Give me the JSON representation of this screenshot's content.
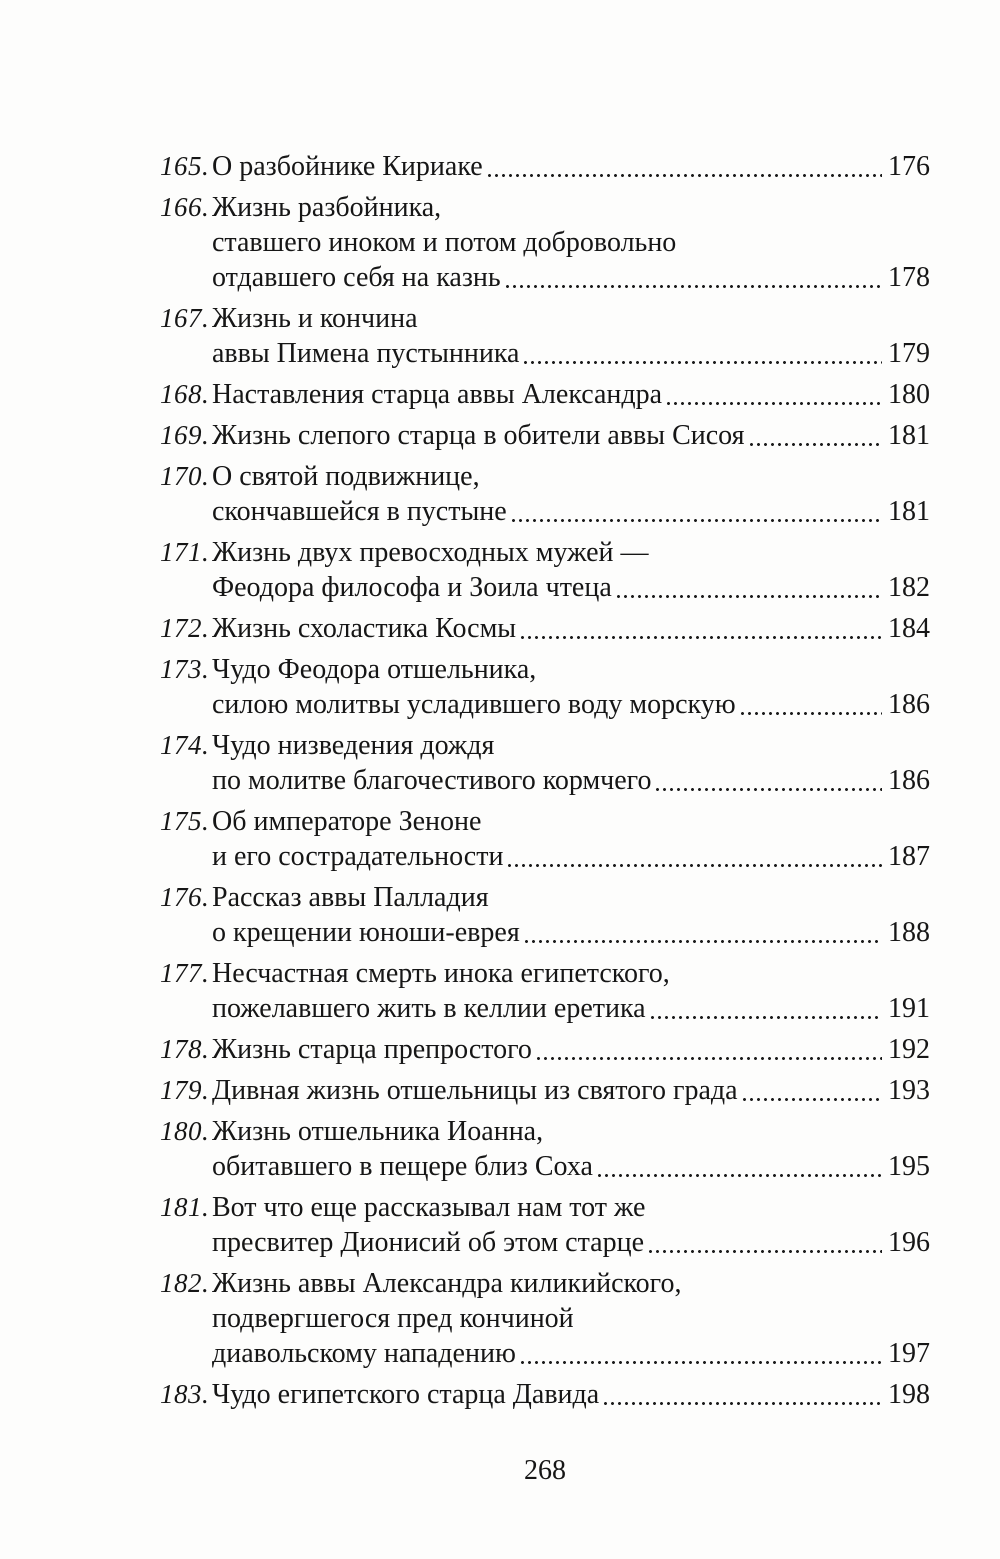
{
  "page": {
    "background_color": "#fdfdfc",
    "text_color": "#161616",
    "footer_page_number": "268"
  },
  "toc": {
    "entries": [
      {
        "number": "165.",
        "lines": [
          "О разбойнике Кириаке"
        ],
        "page": "176"
      },
      {
        "number": "166.",
        "lines": [
          "Жизнь разбойника,",
          "ставшего иноком и потом добровольно",
          "отдавшего себя на казнь"
        ],
        "page": "178"
      },
      {
        "number": "167.",
        "lines": [
          "Жизнь и кончина",
          "аввы Пимена пустынника"
        ],
        "page": "179"
      },
      {
        "number": "168.",
        "lines": [
          "Наставления старца аввы Александра"
        ],
        "page": "180"
      },
      {
        "number": "169.",
        "lines": [
          "Жизнь слепого старца в обители аввы Сисоя"
        ],
        "page": "181"
      },
      {
        "number": "170.",
        "lines": [
          "О святой подвижнице,",
          "скончавшейся в пустыне"
        ],
        "page": "181"
      },
      {
        "number": "171.",
        "lines": [
          "Жизнь двух превосходных мужей —",
          "Феодора философа и Зоила чтеца"
        ],
        "page": "182"
      },
      {
        "number": "172.",
        "lines": [
          "Жизнь схоластика Космы"
        ],
        "page": "184"
      },
      {
        "number": "173.",
        "lines": [
          "Чудо Феодора отшельника,",
          "силою молитвы усладившего воду морскую"
        ],
        "page": "186"
      },
      {
        "number": "174.",
        "lines": [
          "Чудо низведения дождя",
          "по молитве благочестивого кормчего"
        ],
        "page": "186"
      },
      {
        "number": "175.",
        "lines": [
          "Об императоре Зеноне",
          "и его сострадательности"
        ],
        "page": "187"
      },
      {
        "number": "176.",
        "lines": [
          "Рассказ аввы Палладия",
          "о крещении юноши-еврея"
        ],
        "page": "188"
      },
      {
        "number": "177.",
        "lines": [
          "Несчастная смерть инока египетского,",
          "пожелавшего жить в келлии еретика"
        ],
        "page": "191"
      },
      {
        "number": "178.",
        "lines": [
          "Жизнь старца препростого"
        ],
        "page": "192"
      },
      {
        "number": "179.",
        "lines": [
          "Дивная жизнь отшельницы из святого града"
        ],
        "page": "193"
      },
      {
        "number": "180.",
        "lines": [
          "Жизнь отшельника Иоанна,",
          "обитавшего в пещере близ Соха"
        ],
        "page": "195"
      },
      {
        "number": "181.",
        "lines": [
          "Вот что еще рассказывал нам тот же",
          "пресвитер Дионисий об этом старце"
        ],
        "page": "196"
      },
      {
        "number": "182.",
        "lines": [
          "Жизнь аввы Александра киликийского,",
          "подвергшегося пред кончиной",
          "диавольскому нападению"
        ],
        "page": "197"
      },
      {
        "number": "183.",
        "lines": [
          "Чудо египетского старца Давида"
        ],
        "page": "198"
      }
    ]
  }
}
